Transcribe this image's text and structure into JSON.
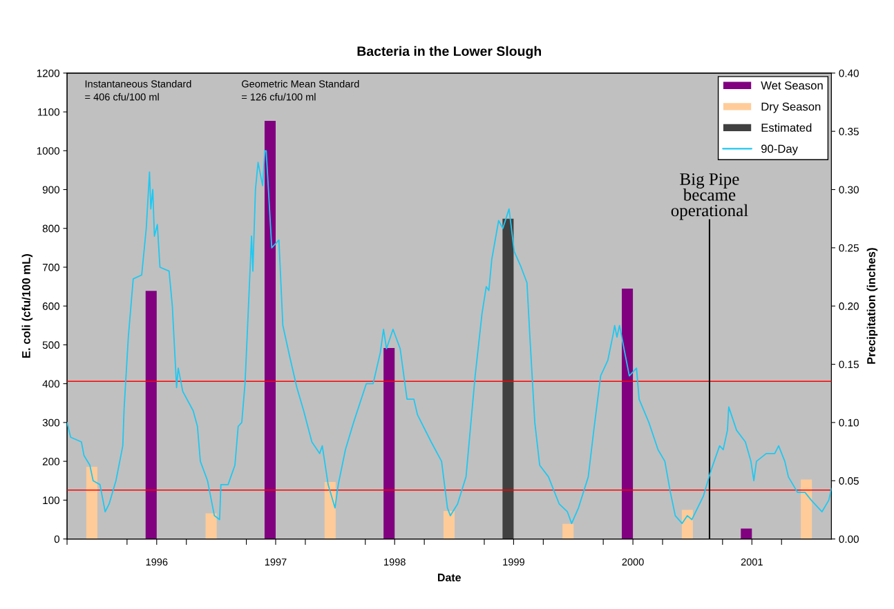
{
  "chart_data": {
    "type": "bar",
    "title": "Bacteria in the Lower Slough",
    "xlabel": "Date",
    "ylabel": "E. coli (cfu/100 mL)",
    "y2label": "Precipitation (inches)",
    "xlim": [
      "1995-07-01",
      "2001-12-01"
    ],
    "xticks": [
      {
        "value": "1995-07-01",
        "label": null
      },
      {
        "value": "1996-01-01",
        "label": null
      },
      {
        "value": "1996-04-01",
        "label": "1996"
      },
      {
        "value": "1996-07-01",
        "label": null
      },
      {
        "value": "1997-01-01",
        "label": null
      },
      {
        "value": "1997-04-01",
        "label": "1997"
      },
      {
        "value": "1997-07-01",
        "label": null
      },
      {
        "value": "1998-01-01",
        "label": null
      },
      {
        "value": "1998-04-01",
        "label": "1998"
      },
      {
        "value": "1998-07-01",
        "label": null
      },
      {
        "value": "1999-01-01",
        "label": null
      },
      {
        "value": "1999-04-01",
        "label": "1999"
      },
      {
        "value": "1999-07-01",
        "label": null
      },
      {
        "value": "2000-01-01",
        "label": null
      },
      {
        "value": "2000-04-01",
        "label": "2000"
      },
      {
        "value": "2000-07-01",
        "label": null
      },
      {
        "value": "2001-01-01",
        "label": null
      },
      {
        "value": "2001-04-01",
        "label": "2001"
      },
      {
        "value": "2001-07-01",
        "label": null
      }
    ],
    "ylim": [
      0,
      1200
    ],
    "yticks": [
      0,
      100,
      200,
      300,
      400,
      500,
      600,
      700,
      800,
      900,
      1000,
      1100,
      1200
    ],
    "y2lim": [
      0,
      0.4
    ],
    "y2ticks": [
      {
        "value": 0,
        "label": "0.00"
      },
      {
        "value": 0.05,
        "label": "0.05"
      },
      {
        "value": 0.1,
        "label": "0.10"
      },
      {
        "value": 0.15,
        "label": "0.15"
      },
      {
        "value": 0.2,
        "label": "0.20"
      },
      {
        "value": 0.25,
        "label": "0.25"
      },
      {
        "value": 0.3,
        "label": "0.30"
      },
      {
        "value": 0.35,
        "label": "0.35"
      },
      {
        "value": 0.4,
        "label": "0.40"
      }
    ],
    "series": [
      {
        "name": "Wet Season",
        "type": "bar",
        "axis": "y2",
        "color": "#800080",
        "x": [
          "1996-03-15",
          "1997-03-15",
          "1998-03-15",
          "2000-03-15",
          "2001-03-15"
        ],
        "values": [
          0.213,
          0.359,
          0.164,
          0.215,
          0.009
        ]
      },
      {
        "name": "Dry Season",
        "type": "bar",
        "axis": "y2",
        "color": "#ffcc99",
        "x": [
          "1995-09-15",
          "1996-09-15",
          "1997-09-15",
          "1998-09-15",
          "1999-09-15",
          "2000-09-15",
          "2001-09-15"
        ],
        "values": [
          0.062,
          0.022,
          0.049,
          0.024,
          0.013,
          0.025,
          0.051
        ]
      },
      {
        "name": "Estimated",
        "type": "bar",
        "axis": "y2",
        "color": "#404040",
        "x": [
          "1999-03-15"
        ],
        "values": [
          0.275
        ]
      },
      {
        "name": "90-Day",
        "type": "line",
        "color": "#1ec8f0",
        "x": [
          "1995-07-01",
          "1995-07-12",
          "1995-08-14",
          "1995-08-22",
          "1995-09-09",
          "1995-09-19",
          "1995-10-10",
          "1995-10-26",
          "1995-11-07",
          "1995-11-28",
          "1995-12-19",
          "1995-12-23",
          "1996-01-05",
          "1996-01-20",
          "1996-02-15",
          "1996-02-29",
          "1996-03-10",
          "1996-03-14",
          "1996-03-20",
          "1996-03-25",
          "1996-04-03",
          "1996-04-11",
          "1996-05-09",
          "1996-05-19",
          "1996-06-01",
          "1996-06-06",
          "1996-06-20",
          "1996-07-22",
          "1996-08-04",
          "1996-08-13",
          "1996-09-04",
          "1996-09-25",
          "1996-10-11",
          "1996-10-15",
          "1996-11-06",
          "1996-11-27",
          "1996-12-07",
          "1996-12-18",
          "1996-12-28",
          "1997-01-04",
          "1997-01-17",
          "1997-01-21",
          "1997-01-29",
          "1997-02-06",
          "1997-02-20",
          "1997-02-27",
          "1997-03-03",
          "1997-03-20",
          "1997-04-11",
          "1997-04-23",
          "1997-05-14",
          "1997-06-05",
          "1997-06-26",
          "1997-07-21",
          "1997-08-14",
          "1997-08-22",
          "1997-09-09",
          "1997-09-30",
          "1997-10-10",
          "1997-11-01",
          "1997-11-26",
          "1998-01-04",
          "1998-01-25",
          "1998-02-16",
          "1998-02-26",
          "1998-03-07",
          "1998-03-27",
          "1998-04-18",
          "1998-05-09",
          "1998-05-30",
          "1998-06-10",
          "1998-07-22",
          "1998-08-23",
          "1998-09-10",
          "1998-09-19",
          "1998-10-11",
          "1998-11-06",
          "1998-12-04",
          "1998-12-25",
          "1999-01-07",
          "1999-01-15",
          "1999-01-24",
          "1999-02-14",
          "1999-02-27",
          "1999-03-18",
          "1999-04-03",
          "1999-04-24",
          "1999-05-12",
          "1999-05-21",
          "1999-06-05",
          "1999-06-20",
          "1999-07-17",
          "1999-08-19",
          "1999-09-13",
          "1999-09-26",
          "1999-10-17",
          "1999-11-16",
          "1999-12-03",
          "1999-12-24",
          "2000-01-15",
          "2000-02-01",
          "2000-02-05",
          "2000-02-12",
          "2000-02-20",
          "2000-03-07",
          "2000-03-21",
          "2000-04-12",
          "2000-04-20",
          "2000-05-20",
          "2000-06-17",
          "2000-07-08",
          "2000-07-25",
          "2000-08-09",
          "2000-08-30",
          "2000-09-15",
          "2000-09-29",
          "2000-11-03",
          "2000-11-28",
          "2000-12-23",
          "2001-01-03",
          "2001-01-16",
          "2001-01-20",
          "2001-02-13",
          "2001-03-12",
          "2001-03-29",
          "2001-04-07",
          "2001-04-15",
          "2001-05-15",
          "2001-06-10",
          "2001-06-22",
          "2001-07-11",
          "2001-07-22",
          "2001-08-19",
          "2001-09-11",
          "2001-09-30",
          "2001-11-02",
          "2001-11-23",
          "2001-12-01"
        ],
        "values": [
          300,
          262,
          250,
          215,
          190,
          150,
          140,
          70,
          90,
          150,
          240,
          335,
          520,
          670,
          680,
          800,
          945,
          850,
          900,
          780,
          810,
          700,
          690,
          600,
          390,
          440,
          380,
          330,
          290,
          200,
          150,
          60,
          50,
          140,
          140,
          190,
          290,
          300,
          400,
          530,
          780,
          690,
          900,
          970,
          910,
          1000,
          1000,
          750,
          770,
          550,
          470,
          390,
          330,
          250,
          220,
          240,
          140,
          80,
          140,
          230,
          300,
          400,
          400,
          480,
          540,
          490,
          540,
          490,
          360,
          360,
          320,
          250,
          200,
          80,
          60,
          90,
          160,
          420,
          580,
          650,
          640,
          720,
          820,
          800,
          850,
          740,
          700,
          660,
          520,
          300,
          190,
          160,
          90,
          70,
          40,
          80,
          160,
          280,
          420,
          460,
          530,
          550,
          520,
          550,
          480,
          420,
          440,
          360,
          300,
          230,
          200,
          120,
          60,
          40,
          60,
          50,
          110,
          180,
          240,
          230,
          280,
          340,
          280,
          250,
          200,
          150,
          200,
          220,
          220,
          240,
          200,
          160,
          120,
          120,
          100,
          70,
          100,
          130
        ]
      }
    ],
    "ref_lines": [
      {
        "axis": "y",
        "value": 406,
        "color": "#ff0000"
      },
      {
        "axis": "y",
        "value": 126,
        "color": "#ff0000"
      },
      {
        "axis": "x",
        "value": "2000-11-22",
        "color": "#000000",
        "label": "Big Pipe\nbecame\noperational"
      }
    ],
    "annotations": [
      "Instantaneous Standard\n= 406 cfu/100 ml",
      "Geometric Mean Standard\n= 126 cfu/100 ml"
    ],
    "legend": "top right",
    "grid": false
  }
}
